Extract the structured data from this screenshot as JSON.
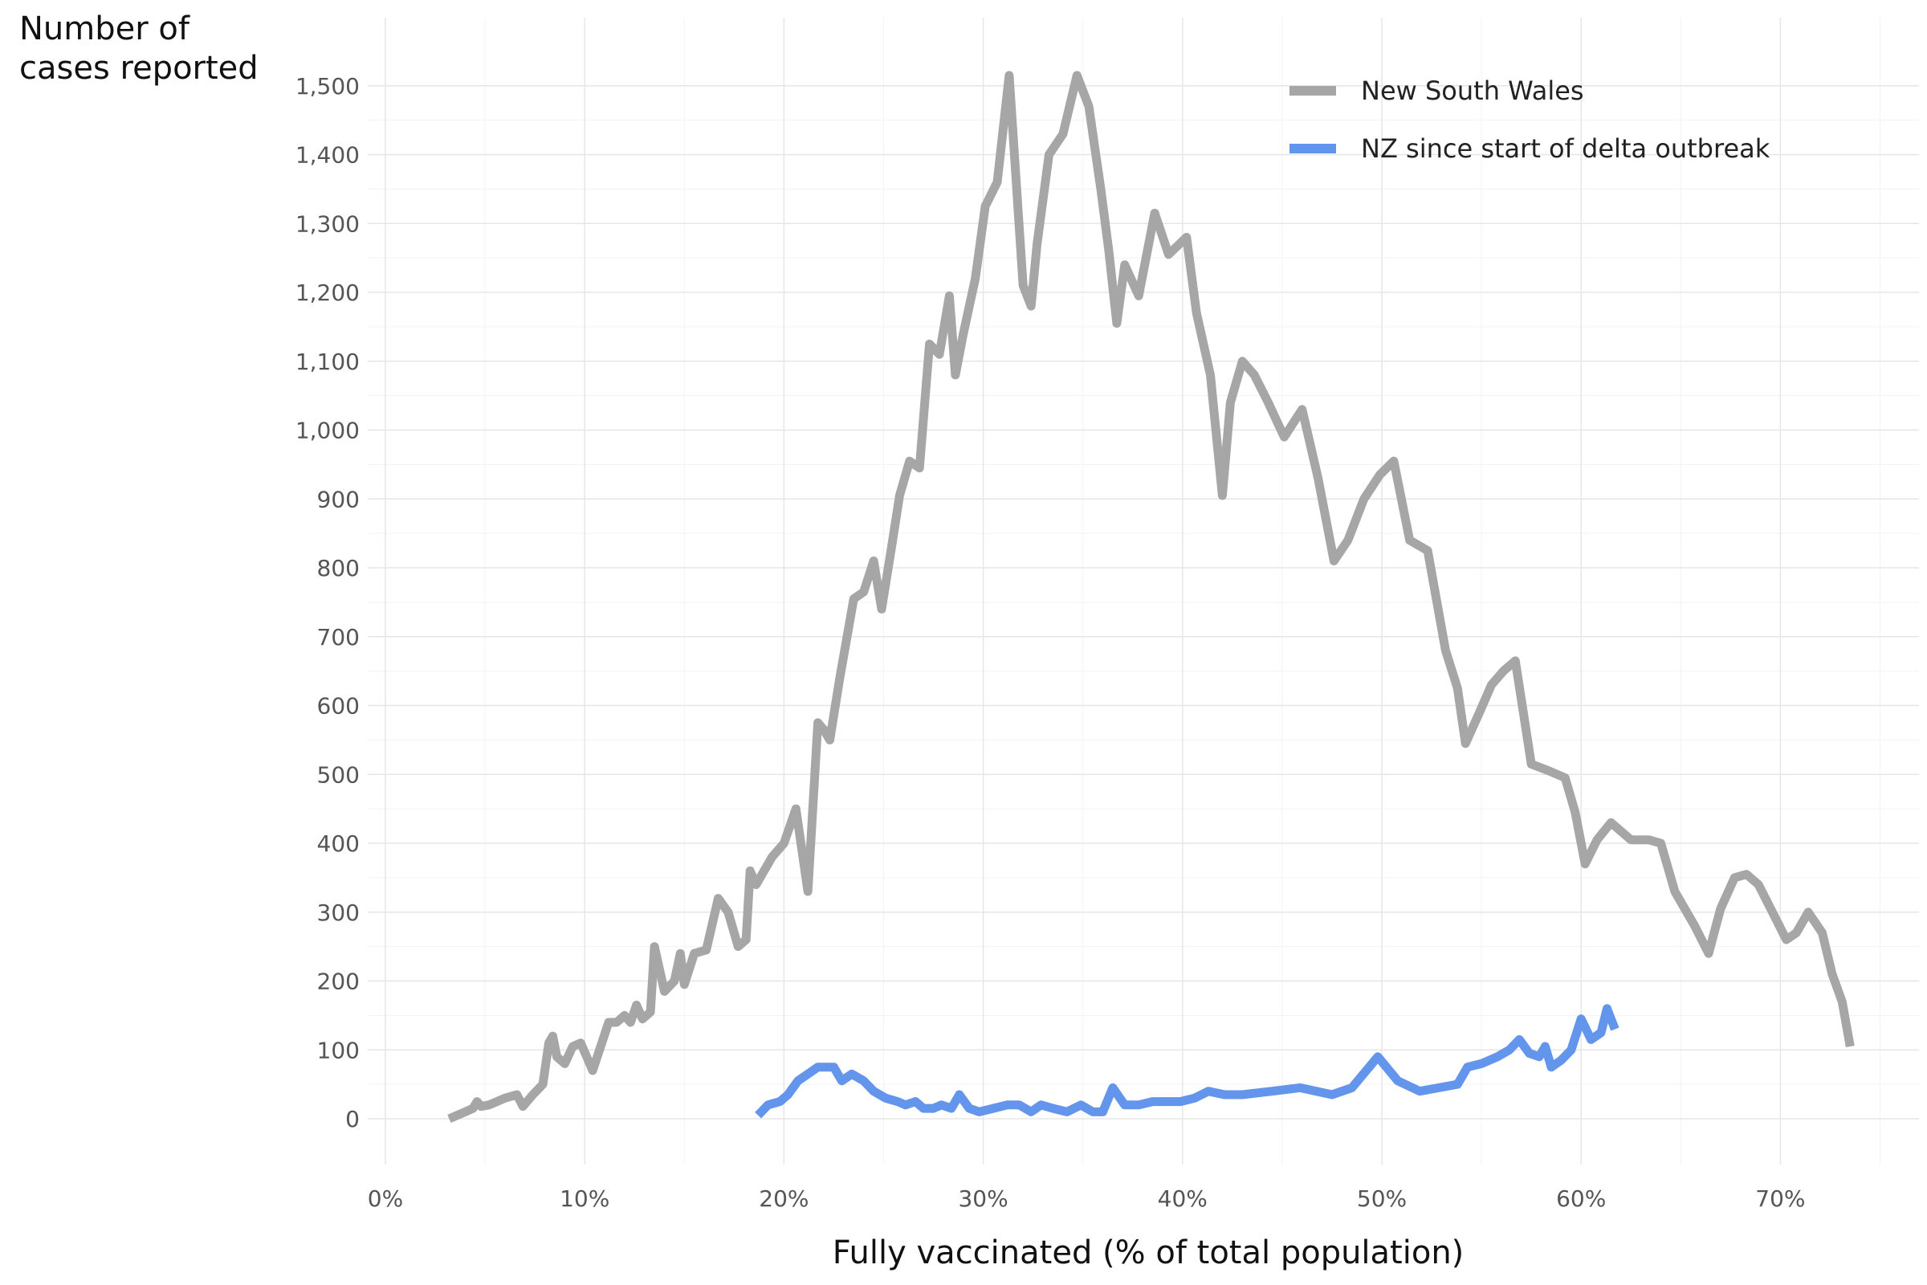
{
  "chart_data": {
    "type": "line",
    "ylabel_lines": [
      "Number of",
      "cases reported"
    ],
    "xlabel": "Fully vaccinated (% of total population)",
    "x_ticks": [
      0,
      10,
      20,
      30,
      40,
      50,
      60,
      70
    ],
    "x_tick_labels": [
      "0%",
      "10%",
      "20%",
      "30%",
      "40%",
      "50%",
      "60%",
      "70%"
    ],
    "y_ticks": [
      0,
      100,
      200,
      300,
      400,
      500,
      600,
      700,
      800,
      900,
      1000,
      1100,
      1200,
      1300,
      1400,
      1500
    ],
    "y_tick_labels": [
      "0",
      "100",
      "200",
      "300",
      "400",
      "500",
      "600",
      "700",
      "800",
      "900",
      "1,000",
      "1,100",
      "1,200",
      "1,300",
      "1,400",
      "1,500"
    ],
    "xlim": [
      0,
      77
    ],
    "ylim": [
      -80,
      1600
    ],
    "grid": true,
    "legend_position": "top-right",
    "series": [
      {
        "name": "New South Wales",
        "color": "#a6a6a6",
        "points": [
          [
            3.2,
            0
          ],
          [
            3.6,
            5
          ],
          [
            4.0,
            10
          ],
          [
            4.4,
            15
          ],
          [
            4.6,
            25
          ],
          [
            4.8,
            18
          ],
          [
            5.2,
            20
          ],
          [
            5.6,
            25
          ],
          [
            6.0,
            30
          ],
          [
            6.6,
            35
          ],
          [
            6.9,
            18
          ],
          [
            7.4,
            35
          ],
          [
            7.9,
            50
          ],
          [
            8.2,
            110
          ],
          [
            8.4,
            120
          ],
          [
            8.6,
            90
          ],
          [
            9.0,
            80
          ],
          [
            9.4,
            105
          ],
          [
            9.8,
            110
          ],
          [
            10.1,
            90
          ],
          [
            10.4,
            70
          ],
          [
            10.8,
            105
          ],
          [
            11.2,
            140
          ],
          [
            11.6,
            140
          ],
          [
            12.0,
            150
          ],
          [
            12.3,
            140
          ],
          [
            12.6,
            165
          ],
          [
            12.9,
            145
          ],
          [
            13.3,
            155
          ],
          [
            13.5,
            250
          ],
          [
            14.0,
            185
          ],
          [
            14.5,
            200
          ],
          [
            14.8,
            240
          ],
          [
            15.0,
            195
          ],
          [
            15.5,
            240
          ],
          [
            16.1,
            245
          ],
          [
            16.7,
            320
          ],
          [
            17.2,
            300
          ],
          [
            17.7,
            250
          ],
          [
            18.1,
            260
          ],
          [
            18.3,
            360
          ],
          [
            18.6,
            340
          ],
          [
            19.4,
            380
          ],
          [
            20.0,
            400
          ],
          [
            20.6,
            450
          ],
          [
            21.2,
            330
          ],
          [
            21.7,
            575
          ],
          [
            22.0,
            565
          ],
          [
            22.3,
            550
          ],
          [
            22.8,
            640
          ],
          [
            23.5,
            755
          ],
          [
            24.0,
            765
          ],
          [
            24.5,
            810
          ],
          [
            24.9,
            740
          ],
          [
            25.4,
            830
          ],
          [
            25.8,
            905
          ],
          [
            26.3,
            955
          ],
          [
            26.8,
            945
          ],
          [
            27.3,
            1125
          ],
          [
            27.8,
            1110
          ],
          [
            28.3,
            1195
          ],
          [
            28.6,
            1080
          ],
          [
            29.0,
            1140
          ],
          [
            29.6,
            1220
          ],
          [
            30.1,
            1325
          ],
          [
            30.7,
            1360
          ],
          [
            31.3,
            1515
          ],
          [
            32.0,
            1210
          ],
          [
            32.4,
            1180
          ],
          [
            32.7,
            1270
          ],
          [
            33.3,
            1400
          ],
          [
            34.0,
            1430
          ],
          [
            34.7,
            1515
          ],
          [
            35.3,
            1470
          ],
          [
            35.9,
            1350
          ],
          [
            36.3,
            1260
          ],
          [
            36.7,
            1155
          ],
          [
            37.1,
            1240
          ],
          [
            37.8,
            1195
          ],
          [
            38.6,
            1315
          ],
          [
            39.3,
            1255
          ],
          [
            40.2,
            1280
          ],
          [
            40.7,
            1170
          ],
          [
            41.4,
            1080
          ],
          [
            42.0,
            905
          ],
          [
            42.4,
            1040
          ],
          [
            43.0,
            1100
          ],
          [
            43.6,
            1080
          ],
          [
            44.3,
            1040
          ],
          [
            45.1,
            990
          ],
          [
            46.0,
            1030
          ],
          [
            46.8,
            930
          ],
          [
            47.6,
            810
          ],
          [
            48.3,
            840
          ],
          [
            49.1,
            900
          ],
          [
            49.9,
            935
          ],
          [
            50.6,
            955
          ],
          [
            51.4,
            840
          ],
          [
            52.3,
            825
          ],
          [
            53.2,
            680
          ],
          [
            53.8,
            625
          ],
          [
            54.2,
            545
          ],
          [
            54.9,
            590
          ],
          [
            55.5,
            630
          ],
          [
            56.1,
            650
          ],
          [
            56.7,
            665
          ],
          [
            57.5,
            515
          ],
          [
            58.4,
            505
          ],
          [
            59.2,
            495
          ],
          [
            59.7,
            445
          ],
          [
            60.2,
            370
          ],
          [
            60.8,
            405
          ],
          [
            61.5,
            430
          ],
          [
            62.5,
            405
          ],
          [
            63.4,
            405
          ],
          [
            64.0,
            400
          ],
          [
            64.7,
            330
          ],
          [
            65.7,
            280
          ],
          [
            66.4,
            240
          ],
          [
            67.0,
            305
          ],
          [
            67.7,
            350
          ],
          [
            68.3,
            355
          ],
          [
            68.9,
            340
          ],
          [
            69.6,
            300
          ],
          [
            70.3,
            260
          ],
          [
            70.8,
            270
          ],
          [
            71.4,
            300
          ],
          [
            72.1,
            270
          ],
          [
            72.6,
            210
          ],
          [
            73.1,
            170
          ],
          [
            73.5,
            105
          ]
        ]
      },
      {
        "name": "NZ since start of delta outbreak",
        "color": "#6495ed",
        "points": [
          [
            18.7,
            5
          ],
          [
            19.2,
            20
          ],
          [
            19.8,
            25
          ],
          [
            20.2,
            35
          ],
          [
            20.7,
            55
          ],
          [
            21.2,
            65
          ],
          [
            21.7,
            75
          ],
          [
            22.5,
            75
          ],
          [
            22.9,
            55
          ],
          [
            23.4,
            65
          ],
          [
            24.0,
            55
          ],
          [
            24.5,
            40
          ],
          [
            25.1,
            30
          ],
          [
            25.7,
            25
          ],
          [
            26.1,
            20
          ],
          [
            26.6,
            25
          ],
          [
            27.0,
            15
          ],
          [
            27.5,
            15
          ],
          [
            27.9,
            20
          ],
          [
            28.4,
            15
          ],
          [
            28.8,
            35
          ],
          [
            29.3,
            15
          ],
          [
            29.8,
            10
          ],
          [
            30.5,
            15
          ],
          [
            31.2,
            20
          ],
          [
            31.8,
            20
          ],
          [
            32.4,
            10
          ],
          [
            32.9,
            20
          ],
          [
            33.5,
            15
          ],
          [
            34.2,
            10
          ],
          [
            34.9,
            20
          ],
          [
            35.5,
            10
          ],
          [
            36.0,
            10
          ],
          [
            36.5,
            45
          ],
          [
            37.1,
            20
          ],
          [
            37.8,
            20
          ],
          [
            38.5,
            25
          ],
          [
            39.2,
            25
          ],
          [
            39.9,
            25
          ],
          [
            40.6,
            30
          ],
          [
            41.3,
            40
          ],
          [
            42.1,
            35
          ],
          [
            43.0,
            35
          ],
          [
            44.5,
            40
          ],
          [
            45.9,
            45
          ],
          [
            47.5,
            35
          ],
          [
            48.5,
            45
          ],
          [
            49.8,
            90
          ],
          [
            50.8,
            55
          ],
          [
            51.9,
            40
          ],
          [
            53.8,
            50
          ],
          [
            54.3,
            75
          ],
          [
            55.0,
            80
          ],
          [
            55.8,
            90
          ],
          [
            56.4,
            100
          ],
          [
            56.9,
            115
          ],
          [
            57.4,
            95
          ],
          [
            57.9,
            90
          ],
          [
            58.2,
            105
          ],
          [
            58.5,
            75
          ],
          [
            59.0,
            85
          ],
          [
            59.5,
            100
          ],
          [
            60.0,
            145
          ],
          [
            60.5,
            115
          ],
          [
            61.0,
            125
          ],
          [
            61.3,
            160
          ],
          [
            61.7,
            130
          ]
        ]
      }
    ]
  }
}
